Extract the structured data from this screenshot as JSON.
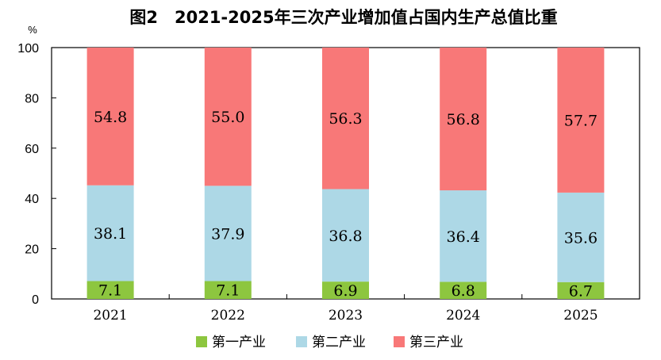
{
  "chart_data": {
    "type": "bar",
    "stacked": true,
    "title": "图2　2021-2025年三次产业增加值占国内生产总值比重",
    "unit_label": "%",
    "xlabel": "",
    "ylabel": "",
    "ylim": [
      0,
      100
    ],
    "yticks": [
      0,
      20,
      40,
      60,
      80,
      100
    ],
    "categories": [
      "2021",
      "2022",
      "2023",
      "2024",
      "2025"
    ],
    "grid": false,
    "legend_position": "bottom",
    "series": [
      {
        "name": "第一产业",
        "color": "#8dc63f",
        "values": [
          7.1,
          7.1,
          6.9,
          6.8,
          6.7
        ],
        "labels": [
          "7.1",
          "7.1",
          "6.9",
          "6.8",
          "6.7"
        ]
      },
      {
        "name": "第二产业",
        "color": "#add8e6",
        "values": [
          38.1,
          37.9,
          36.8,
          36.4,
          35.6
        ],
        "labels": [
          "38.1",
          "37.9",
          "36.8",
          "36.4",
          "35.6"
        ]
      },
      {
        "name": "第三产业",
        "color": "#f87878",
        "values": [
          54.8,
          55.0,
          56.3,
          56.8,
          57.7
        ],
        "labels": [
          "54.8",
          "55.0",
          "56.3",
          "56.8",
          "57.7"
        ]
      }
    ]
  }
}
